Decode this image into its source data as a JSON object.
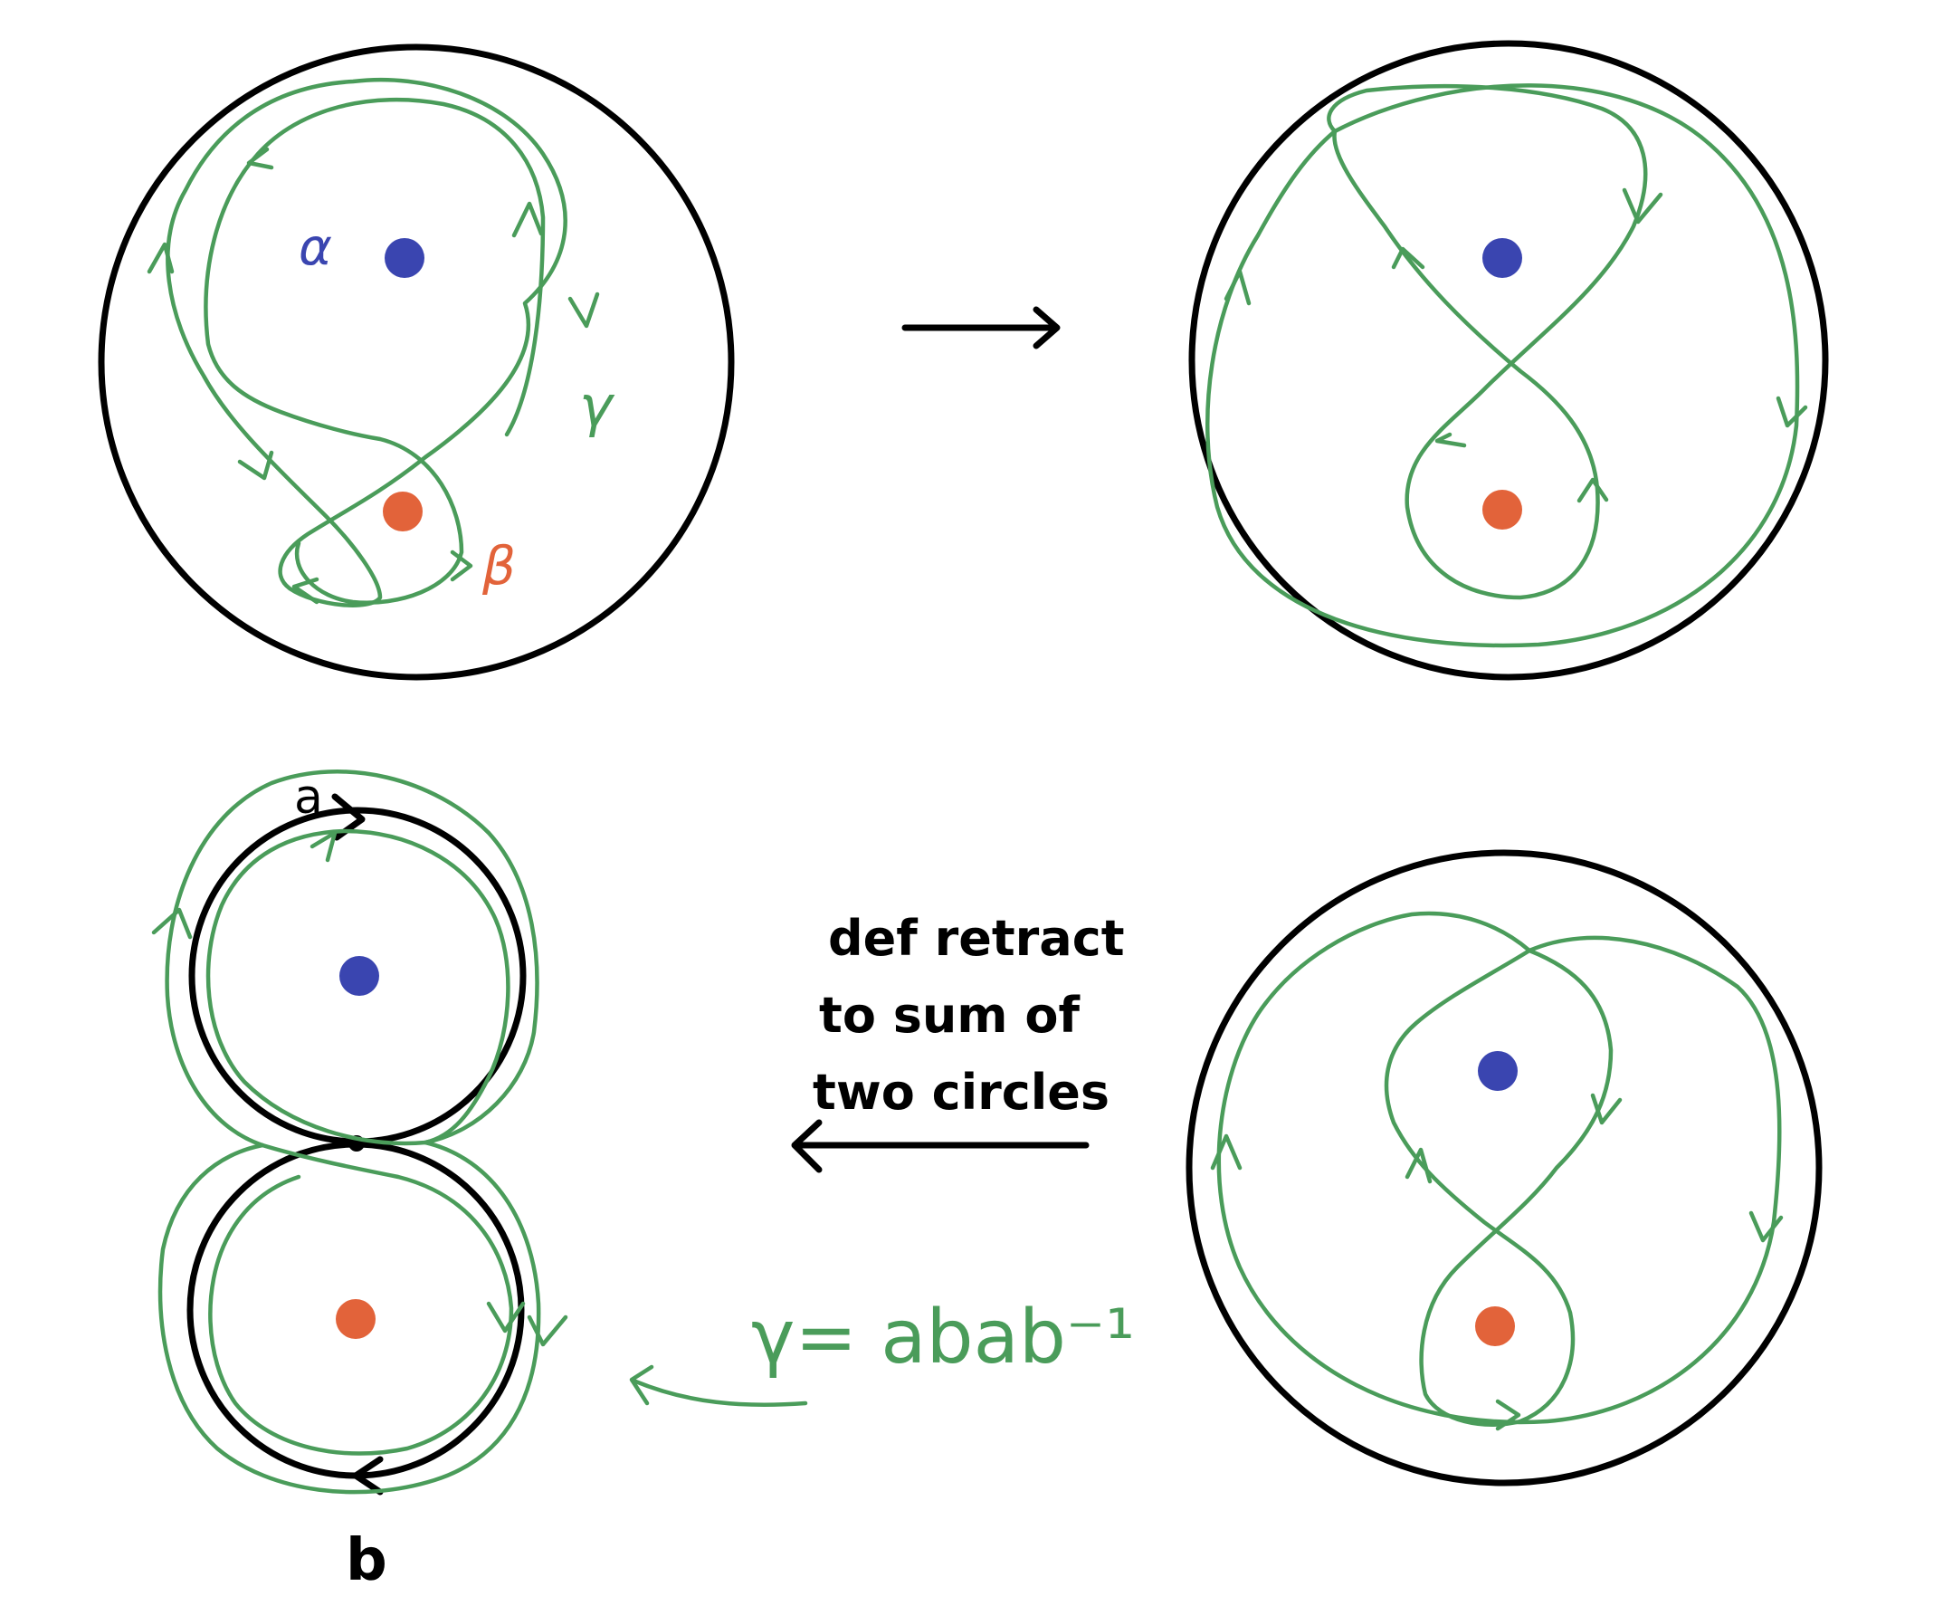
{
  "labels": {
    "alpha": "α",
    "beta": "β",
    "gamma": "γ",
    "a": "a",
    "b": "b",
    "caption_line1": "def retract",
    "caption_line2": "to sum of",
    "caption_line3": "two circles",
    "equation": "γ= abab⁻¹"
  },
  "colors": {
    "outline": "#000000",
    "loop": "#4a9c5a",
    "puncture_alpha": "#3a45b0",
    "puncture_beta": "#e2633a",
    "background": "#ffffff"
  }
}
